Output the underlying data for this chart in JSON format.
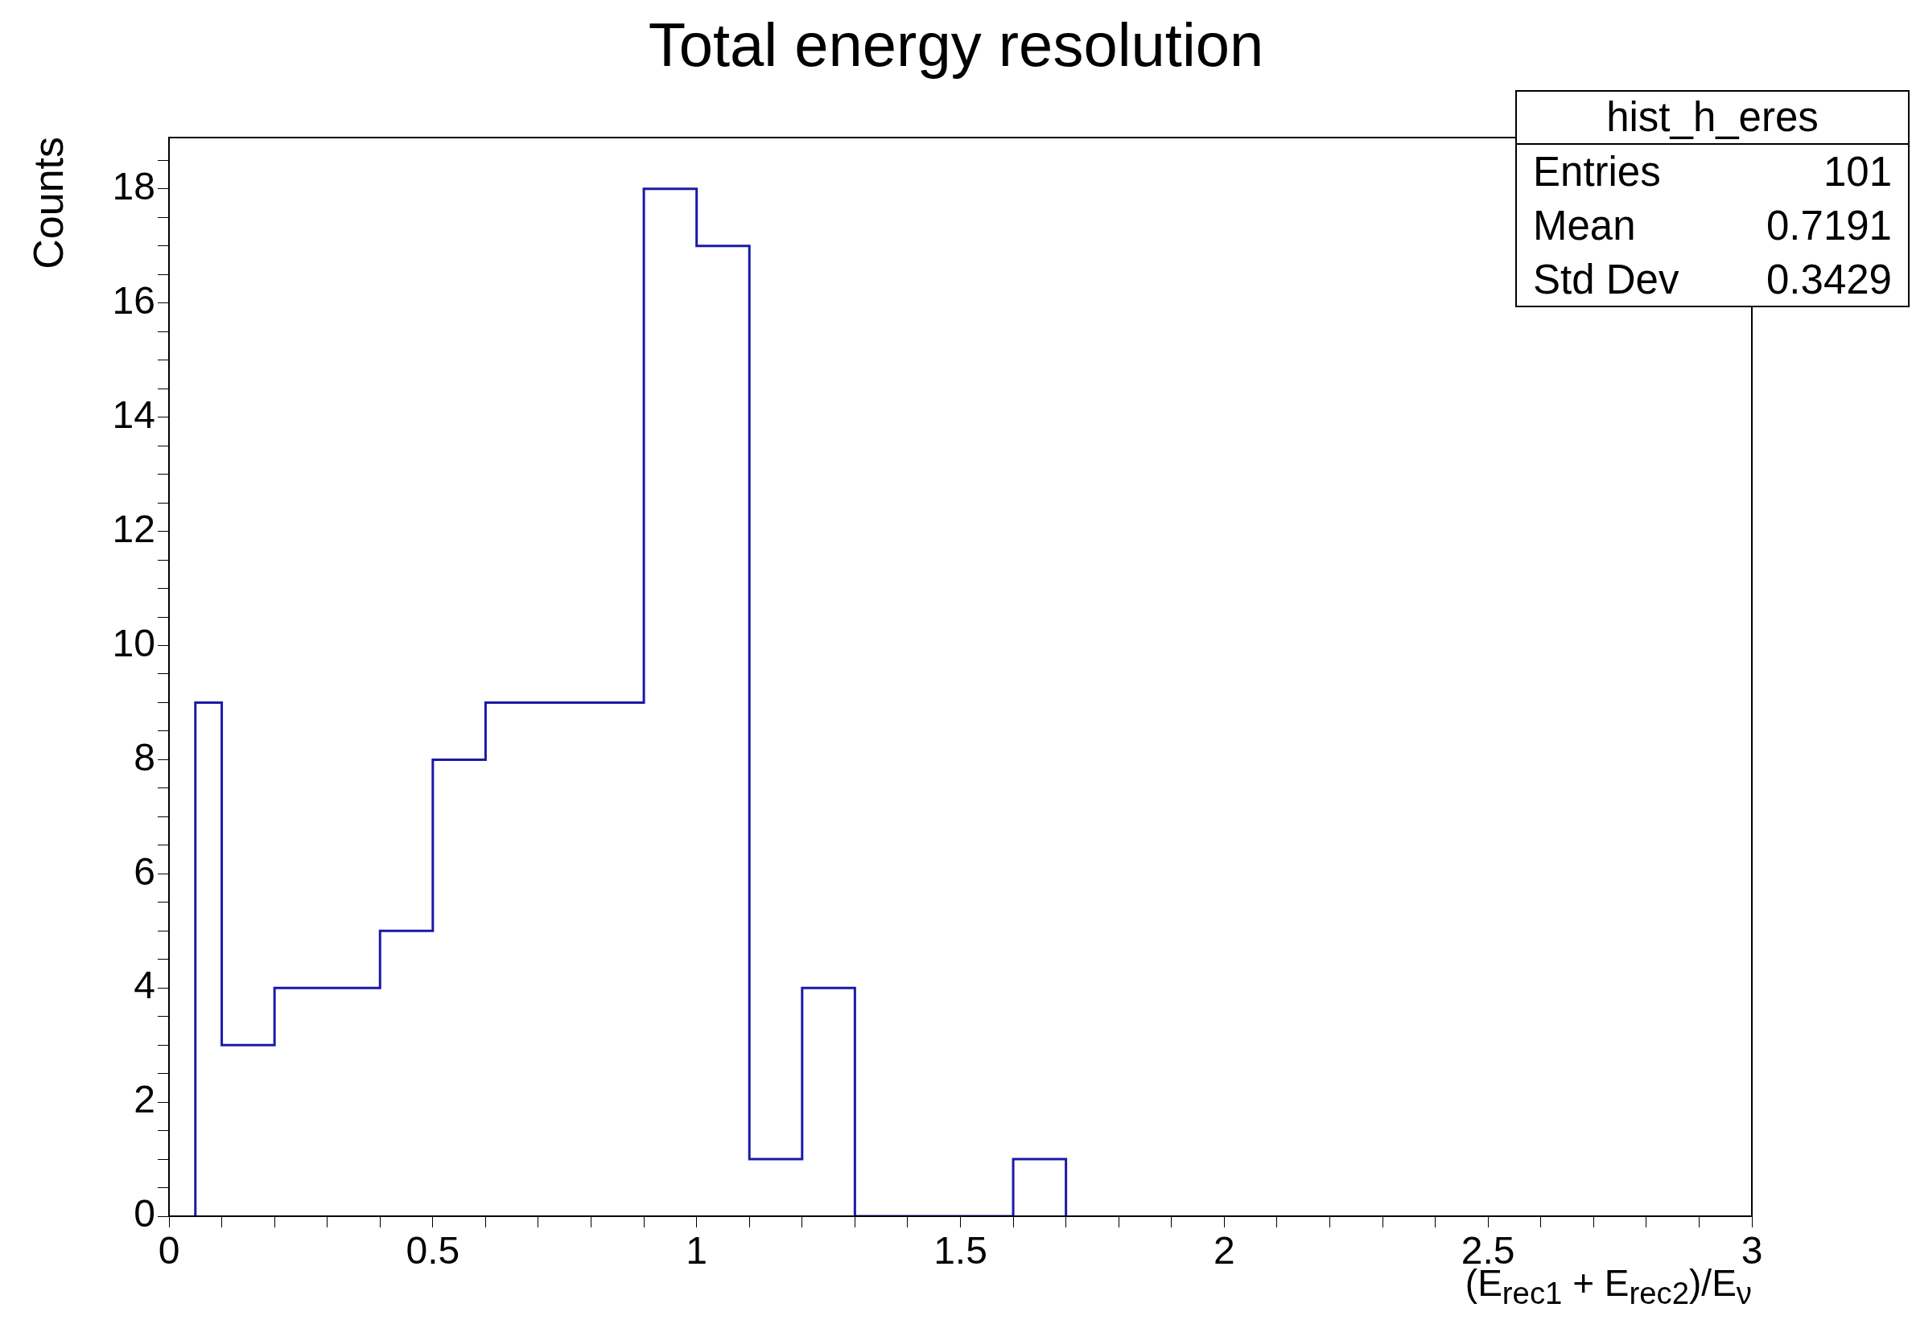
{
  "chart_data": {
    "type": "histogram",
    "title": "Total energy resolution",
    "xlabel": "(E$_{rec1}$ + E$_{rec2}$)/E$_{ν}$",
    "ylabel": "Counts",
    "bins": [
      0.05,
      0.1,
      0.2,
      0.3,
      0.4,
      0.5,
      0.6,
      0.7,
      0.8,
      0.9,
      1.0,
      1.1,
      1.2,
      1.3,
      1.4,
      1.5,
      1.6,
      1.7
    ],
    "values": [
      9,
      3,
      4,
      4,
      5,
      8,
      9,
      9,
      9,
      18,
      17,
      1,
      4,
      0,
      0,
      0,
      1
    ],
    "color": "#1a1aa6",
    "xlim": [
      0,
      3
    ],
    "xticks": [
      0,
      {
        "value": 0.1,
        "label": null
      },
      {
        "value": 0.2,
        "label": null
      },
      {
        "value": 0.3,
        "label": null
      },
      {
        "value": 0.4,
        "label": null
      },
      0.5,
      {
        "value": 0.6,
        "label": null
      },
      {
        "value": 0.7,
        "label": null
      },
      {
        "value": 0.8,
        "label": null
      },
      {
        "value": 0.9,
        "label": null
      },
      1,
      {
        "value": 1.1,
        "label": null
      },
      {
        "value": 1.2,
        "label": null
      },
      {
        "value": 1.3,
        "label": null
      },
      {
        "value": 1.4,
        "label": null
      },
      1.5,
      {
        "value": 1.6,
        "label": null
      },
      {
        "value": 1.7,
        "label": null
      },
      {
        "value": 1.8,
        "label": null
      },
      {
        "value": 1.9,
        "label": null
      },
      2,
      {
        "value": 2.1,
        "label": null
      },
      {
        "value": 2.2,
        "label": null
      },
      {
        "value": 2.3,
        "label": null
      },
      {
        "value": 2.4,
        "label": null
      },
      2.5,
      {
        "value": 2.6,
        "label": null
      },
      {
        "value": 2.7,
        "label": null
      },
      {
        "value": 2.8,
        "label": null
      },
      {
        "value": 2.9,
        "label": null
      },
      3
    ],
    "ylim": [
      0,
      18.9
    ],
    "yticks": [
      0,
      {
        "value": 0.5,
        "label": null
      },
      {
        "value": 1,
        "label": null
      },
      {
        "value": 1.5,
        "label": null
      },
      2,
      {
        "value": 2.5,
        "label": null
      },
      {
        "value": 3,
        "label": null
      },
      {
        "value": 3.5,
        "label": null
      },
      4,
      {
        "value": 4.5,
        "label": null
      },
      {
        "value": 5,
        "label": null
      },
      {
        "value": 5.5,
        "label": null
      },
      6,
      {
        "value": 6.5,
        "label": null
      },
      {
        "value": 7,
        "label": null
      },
      {
        "value": 7.5,
        "label": null
      },
      8,
      {
        "value": 8.5,
        "label": null
      },
      {
        "value": 9,
        "label": null
      },
      {
        "value": 9.5,
        "label": null
      },
      10,
      {
        "value": 10.5,
        "label": null
      },
      {
        "value": 11,
        "label": null
      },
      {
        "value": 11.5,
        "label": null
      },
      12,
      {
        "value": 12.5,
        "label": null
      },
      {
        "value": 13,
        "label": null
      },
      {
        "value": 13.5,
        "label": null
      },
      14,
      {
        "value": 14.5,
        "label": null
      },
      {
        "value": 15,
        "label": null
      },
      {
        "value": 15.5,
        "label": null
      },
      16,
      {
        "value": 16.5,
        "label": null
      },
      {
        "value": 17,
        "label": null
      },
      {
        "value": 17.5,
        "label": null
      },
      18,
      {
        "value": 18.5,
        "label": null
      }
    ],
    "annotations": [
      "hist_h_eres",
      "Entries",
      "101",
      "Mean",
      "0.7191",
      "Std Dev",
      "0.3429"
    ]
  }
}
